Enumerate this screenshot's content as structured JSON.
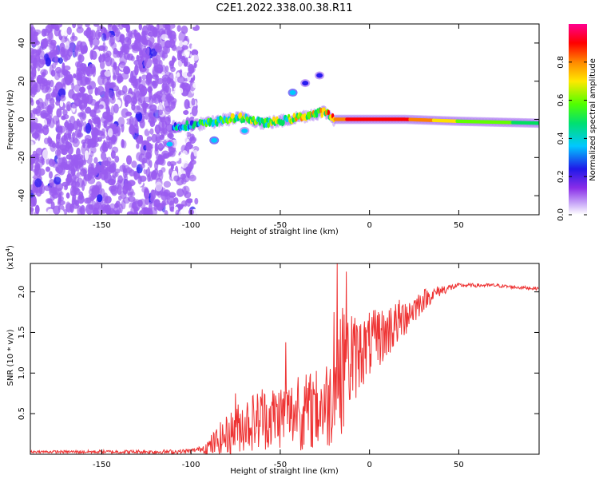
{
  "figure_title": "C2E1.2022.338.00.38.R11",
  "chart_data": [
    {
      "type": "heatmap",
      "title": "C2E1.2022.338.00.38.R11",
      "xlabel": "Height of straight line (km)",
      "ylabel": "Frequency (Hz)",
      "xlim": [
        -190,
        95
      ],
      "ylim": [
        -50,
        50
      ],
      "x_ticks": [
        -150,
        -100,
        -50,
        0,
        50
      ],
      "x_tick_labels": [
        "-150",
        "-100",
        "-50",
        "0",
        "50"
      ],
      "y_ticks": [
        -40,
        -20,
        0,
        20,
        40
      ],
      "y_tick_labels": [
        "-40",
        "-20",
        "0",
        "20",
        "40"
      ],
      "colorbar": {
        "label": "Normalized spectral amplitude",
        "range": [
          0,
          1
        ],
        "ticks": [
          0.0,
          0.2,
          0.4,
          0.6,
          0.8
        ],
        "tick_labels": [
          "0.0",
          "0.2",
          "0.4",
          "0.6",
          "0.8"
        ],
        "colors": [
          "#ffffff",
          "#9a5cf0",
          "#2a1cf0",
          "#00c8ff",
          "#00e060",
          "#60ff00",
          "#ffe000",
          "#ff8000",
          "#ff0000",
          "#ff00a0"
        ]
      },
      "features": {
        "noise_region_x": [
          -190,
          -105
        ],
        "main_trace": [
          {
            "x": -110,
            "y": -4,
            "amp": 0.35
          },
          {
            "x": -100,
            "y": -3,
            "amp": 0.4
          },
          {
            "x": -90,
            "y": -2,
            "amp": 0.45
          },
          {
            "x": -80,
            "y": 0,
            "amp": 0.5
          },
          {
            "x": -70,
            "y": 1,
            "amp": 0.55
          },
          {
            "x": -60,
            "y": -2,
            "amp": 0.5
          },
          {
            "x": -50,
            "y": -1,
            "amp": 0.55
          },
          {
            "x": -40,
            "y": 1,
            "amp": 0.6
          },
          {
            "x": -30,
            "y": 3,
            "amp": 0.6
          },
          {
            "x": -25,
            "y": 4,
            "amp": 0.65
          },
          {
            "x": -20,
            "y": 0,
            "amp": 0.8
          },
          {
            "x": 0,
            "y": 0,
            "amp": 0.9
          },
          {
            "x": 20,
            "y": 0,
            "amp": 0.85
          },
          {
            "x": 50,
            "y": -1,
            "amp": 0.6
          },
          {
            "x": 95,
            "y": -2,
            "amp": 0.45
          }
        ],
        "side_blobs": [
          {
            "x": -43,
            "y": 14,
            "amp": 0.35
          },
          {
            "x": -36,
            "y": 19,
            "amp": 0.25
          },
          {
            "x": -28,
            "y": 23,
            "amp": 0.2
          },
          {
            "x": -112,
            "y": -13,
            "amp": 0.3
          },
          {
            "x": -87,
            "y": -11,
            "amp": 0.35
          },
          {
            "x": -70,
            "y": -6,
            "amp": 0.3
          }
        ]
      }
    },
    {
      "type": "line",
      "xlabel": "Height of straight line (km)",
      "ylabel": "SNR (10 * v/v)",
      "y_multiplier_base": "x10",
      "y_multiplier_exp": "4",
      "xlim": [
        -190,
        95
      ],
      "ylim": [
        0,
        23500
      ],
      "x_ticks": [
        -150,
        -100,
        -50,
        0,
        50
      ],
      "x_tick_labels": [
        "-150",
        "-100",
        "-50",
        "0",
        "50"
      ],
      "y_ticks": [
        5000,
        10000,
        15000,
        20000
      ],
      "y_tick_labels": [
        "0.5",
        "1.0",
        "1.5",
        "2.0"
      ],
      "series": [
        {
          "name": "SNR",
          "color": "#ee3333",
          "trend": {
            "x": [
              -190,
              -110,
              -100,
              -90,
              -80,
              -70,
              -60,
              -50,
              -40,
              -30,
              -22,
              -18,
              -14,
              -10,
              0,
              10,
              20,
              30,
              40,
              50,
              60,
              70,
              80,
              95
            ],
            "y": [
              300,
              300,
              400,
              900,
              2300,
              3800,
              4300,
              4800,
              5000,
              5500,
              6500,
              9000,
              10500,
              11500,
              13500,
              15000,
              17000,
              19000,
              20200,
              20800,
              20800,
              20800,
              20600,
              20400
            ]
          },
          "peaks": [
            {
              "x": -75,
              "y": 7500
            },
            {
              "x": -60,
              "y": 8000
            },
            {
              "x": -47,
              "y": 13800
            },
            {
              "x": -40,
              "y": 9500
            },
            {
              "x": -31,
              "y": 8000
            },
            {
              "x": -20,
              "y": 17500
            },
            {
              "x": -18,
              "y": 23500
            },
            {
              "x": -15,
              "y": 18000
            },
            {
              "x": -13,
              "y": 22500
            },
            {
              "x": -10,
              "y": 17000
            },
            {
              "x": -5,
              "y": 16000
            },
            {
              "x": 5,
              "y": 17500
            },
            {
              "x": 12,
              "y": 18000
            },
            {
              "x": 20,
              "y": 18500
            }
          ],
          "noise_amplitude": [
            {
              "x": -190,
              "a": 150
            },
            {
              "x": -95,
              "a": 300
            },
            {
              "x": -85,
              "a": 2000
            },
            {
              "x": -70,
              "a": 3500
            },
            {
              "x": -40,
              "a": 4500
            },
            {
              "x": -25,
              "a": 5500
            },
            {
              "x": -15,
              "a": 7500
            },
            {
              "x": -5,
              "a": 4500
            },
            {
              "x": 20,
              "a": 2500
            },
            {
              "x": 35,
              "a": 900
            },
            {
              "x": 50,
              "a": 250
            },
            {
              "x": 95,
              "a": 200
            }
          ]
        }
      ]
    }
  ]
}
